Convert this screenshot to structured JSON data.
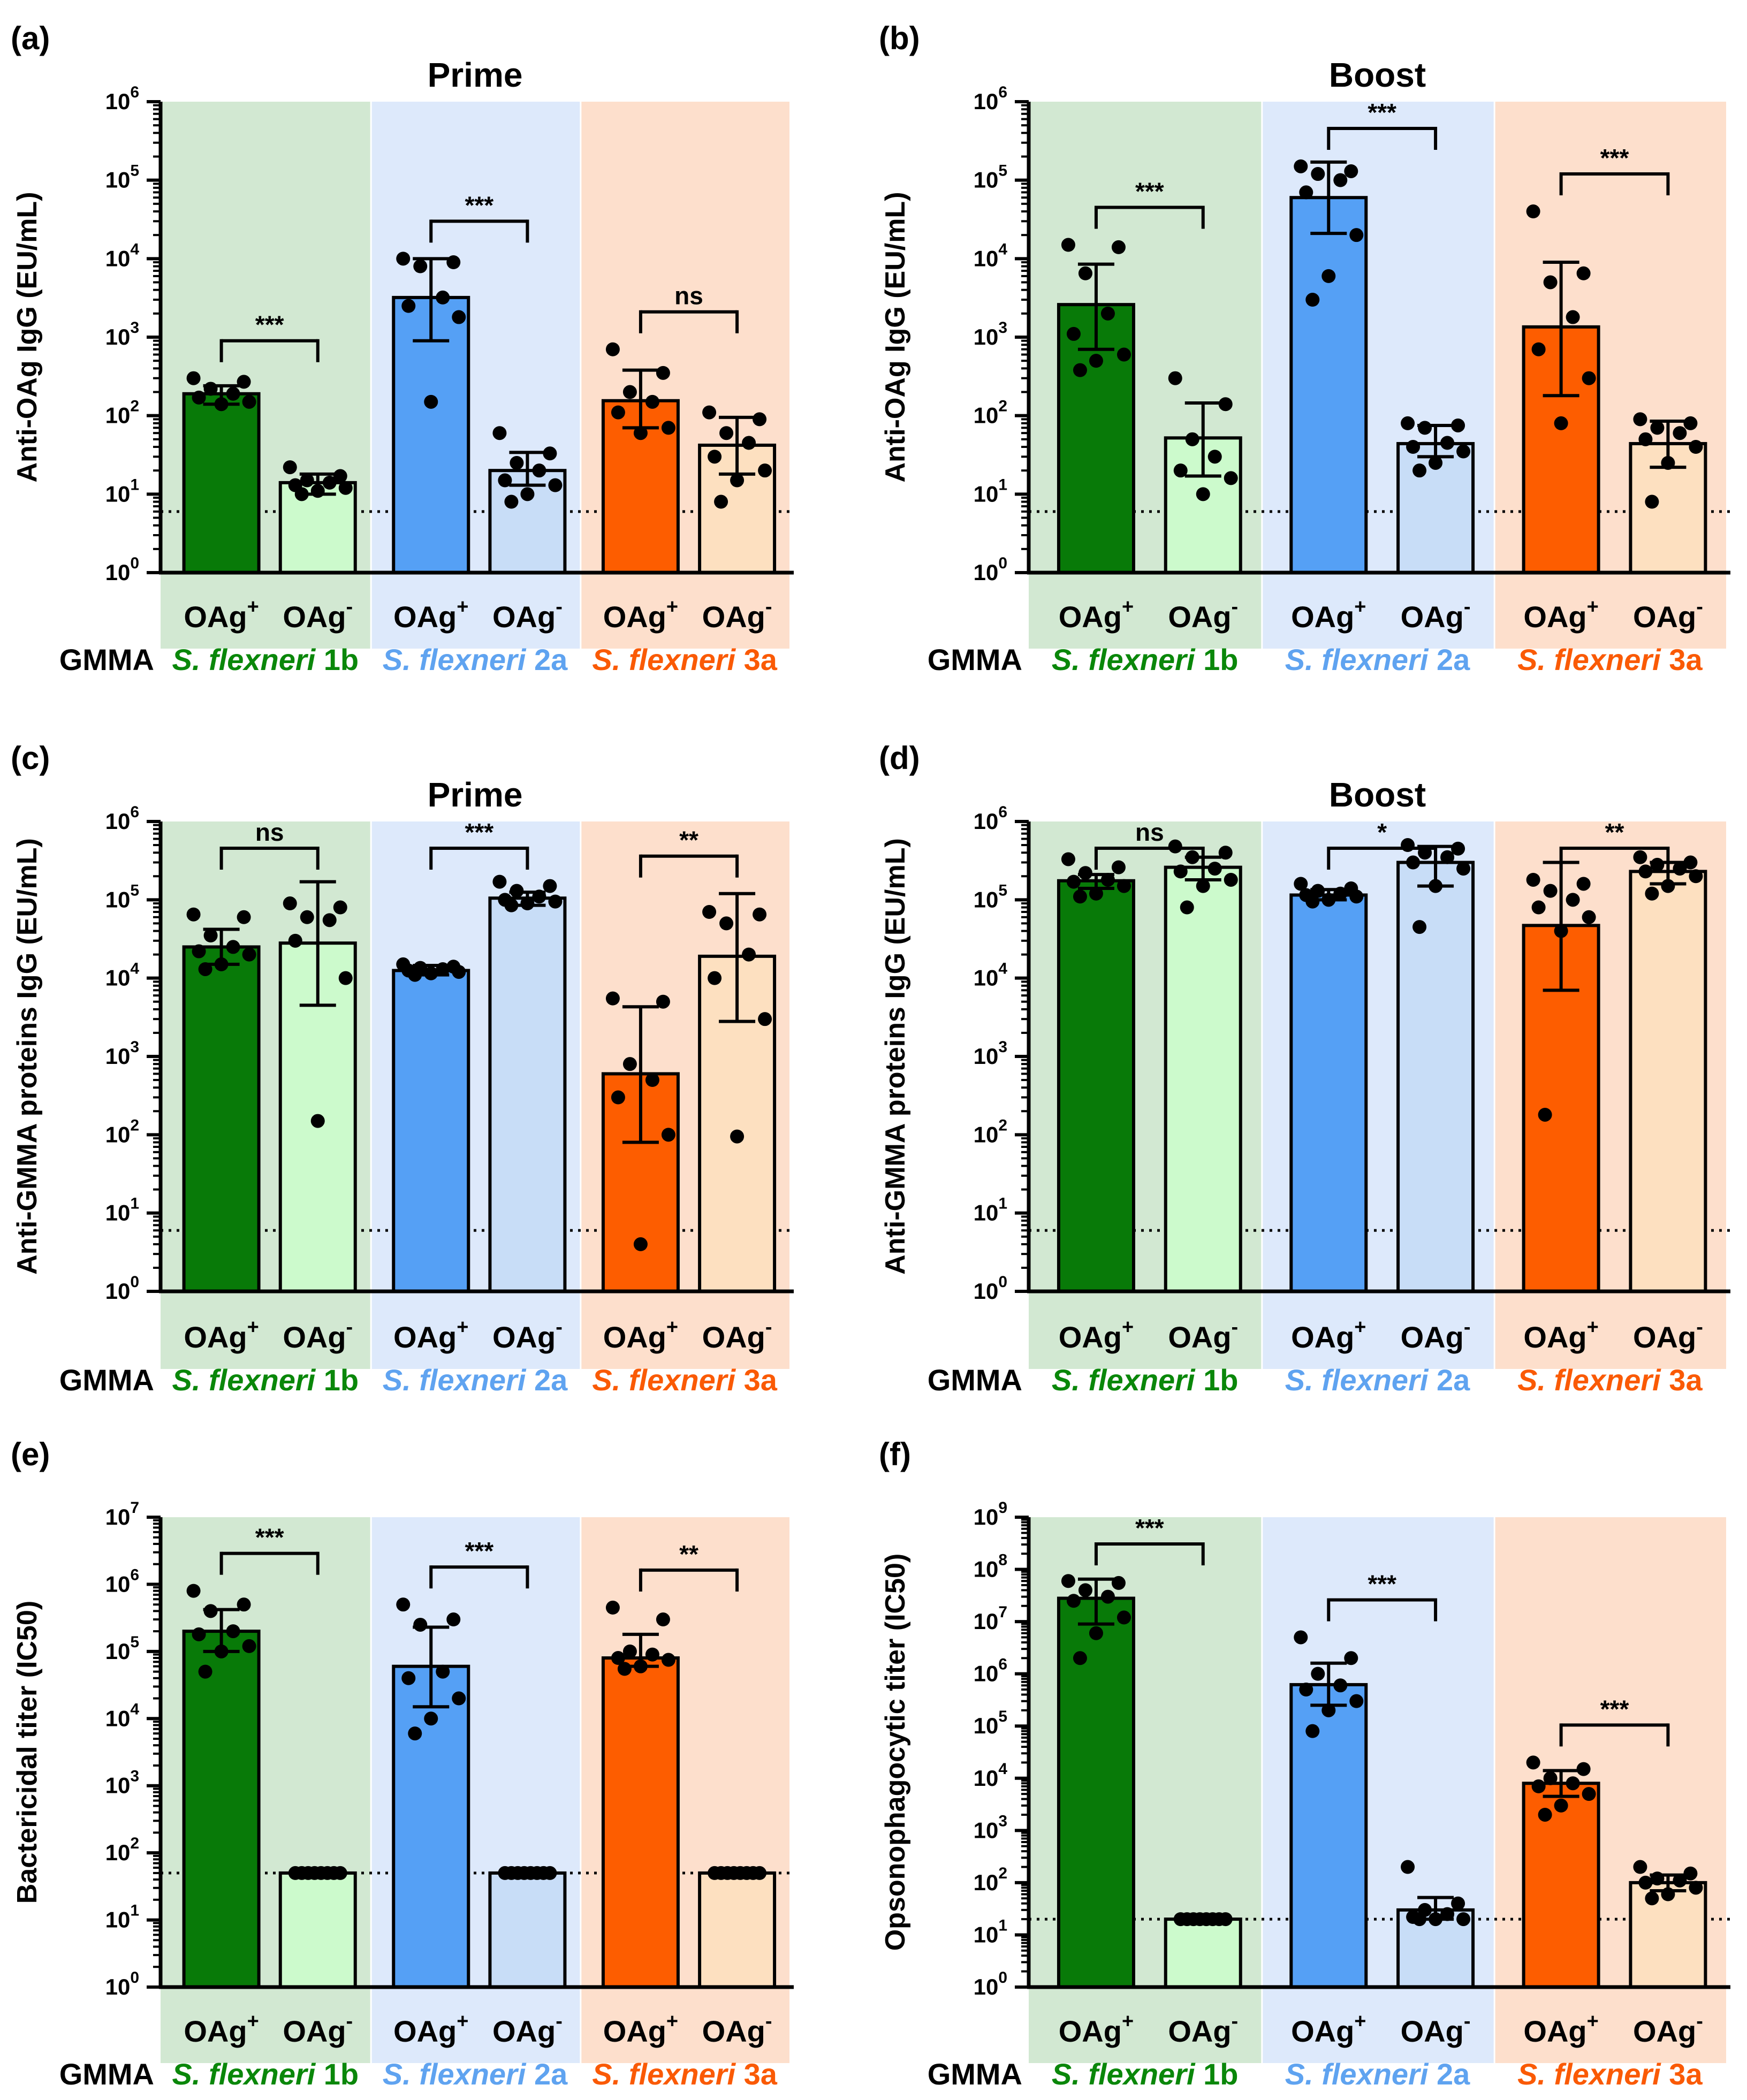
{
  "colors": {
    "bg_green": "#d2e8d2",
    "bg_blue": "#dde9fb",
    "bg_orange": "#fddfcc",
    "bar_green_pos": "#087a08",
    "bar_green_neg": "#ccfacc",
    "bar_blue_pos": "#55a0f5",
    "bar_blue_neg": "#c8ddf7",
    "bar_orange_pos": "#fd5d00",
    "bar_orange_neg": "#fde0c0",
    "label_green": "#0a870a",
    "label_blue": "#5fa3f0",
    "label_orange": "#fa5a05"
  },
  "group_labels": {
    "gmma": "GMMA",
    "g1": {
      "species": "S. flexneri",
      "serotype": "1b"
    },
    "g2": {
      "species": "S. flexneri",
      "serotype": "2a"
    },
    "g3": {
      "species": "S. flexneri",
      "serotype": "3a"
    }
  },
  "bar_labels": {
    "base": "OAg",
    "pos_sup": "+",
    "neg_sup": "-"
  },
  "chart_data": [
    {
      "panel": "(a)",
      "type": "bar",
      "title": "Prime",
      "ylabel": "Anti-OAg IgG (EU/mL)",
      "yscale": "log",
      "ylim": [
        1,
        1000000
      ],
      "ytick_max_exp": 6,
      "lod": 6,
      "categories": [
        "1b OAg+",
        "1b OAg-",
        "2a OAg+",
        "2a OAg-",
        "3a OAg+",
        "3a OAg-"
      ],
      "values": [
        190,
        14,
        3200,
        20,
        155,
        42
      ],
      "err_low": [
        140,
        10,
        900,
        13,
        70,
        18
      ],
      "err_high": [
        240,
        18,
        10000,
        34,
        380,
        95
      ],
      "points": [
        [
          300,
          270,
          220,
          190,
          170,
          150,
          140
        ],
        [
          22,
          17,
          15,
          14,
          13,
          12,
          11,
          10
        ],
        [
          10000,
          9000,
          8000,
          3200,
          2500,
          1800,
          150
        ],
        [
          60,
          33,
          25,
          20,
          15,
          13,
          10,
          8
        ],
        [
          700,
          350,
          200,
          150,
          110,
          70,
          60
        ],
        [
          110,
          90,
          60,
          45,
          30,
          20,
          15,
          8
        ]
      ],
      "significance": [
        {
          "pair": [
            0,
            1
          ],
          "label": "***"
        },
        {
          "pair": [
            2,
            3
          ],
          "label": "***"
        },
        {
          "pair": [
            4,
            5
          ],
          "label": "ns"
        }
      ]
    },
    {
      "panel": "(b)",
      "type": "bar",
      "title": "Boost",
      "ylabel": "Anti-OAg IgG (EU/mL)",
      "yscale": "log",
      "ylim": [
        1,
        1000000
      ],
      "ytick_max_exp": 6,
      "lod": 6,
      "categories": [
        "1b OAg+",
        "1b OAg-",
        "2a OAg+",
        "2a OAg-",
        "3a OAg+",
        "3a OAg-"
      ],
      "values": [
        2600,
        52,
        60000,
        44,
        1350,
        44
      ],
      "err_low": [
        700,
        17,
        21000,
        30,
        180,
        22
      ],
      "err_high": [
        8500,
        145,
        170000,
        75,
        9000,
        85
      ],
      "points": [
        [
          15000,
          14000,
          6500,
          2000,
          1100,
          600,
          500,
          380
        ],
        [
          300,
          140,
          50,
          30,
          20,
          16,
          10
        ],
        [
          150000,
          130000,
          120000,
          100000,
          70000,
          20000,
          6000,
          3000
        ],
        [
          80,
          75,
          70,
          45,
          40,
          35,
          25,
          20
        ],
        [
          40000,
          6500,
          5000,
          1800,
          700,
          300,
          80
        ],
        [
          90,
          80,
          70,
          60,
          50,
          40,
          25,
          8
        ]
      ],
      "significance": [
        {
          "pair": [
            0,
            1
          ],
          "label": "***"
        },
        {
          "pair": [
            2,
            3
          ],
          "label": "***"
        },
        {
          "pair": [
            4,
            5
          ],
          "label": "***"
        }
      ]
    },
    {
      "panel": "(c)",
      "type": "bar",
      "title": "Prime",
      "ylabel": "Anti-GMMA proteins IgG (EU/mL)",
      "yscale": "log",
      "ylim": [
        1,
        1000000
      ],
      "ytick_max_exp": 6,
      "lod": 6,
      "categories": [
        "1b OAg+",
        "1b OAg-",
        "2a OAg+",
        "2a OAg-",
        "3a OAg+",
        "3a OAg-"
      ],
      "values": [
        25000,
        28000,
        12500,
        105000,
        600,
        19000
      ],
      "err_low": [
        15000,
        4500,
        11000,
        85000,
        80,
        2800
      ],
      "err_high": [
        42000,
        170000,
        14500,
        125000,
        4300,
        120000
      ],
      "points": [
        [
          65000,
          60000,
          35000,
          25000,
          22000,
          20000,
          15000,
          13000
        ],
        [
          90000,
          80000,
          60000,
          55000,
          30000,
          10000,
          150
        ],
        [
          15000,
          14000,
          13500,
          13000,
          12500,
          12000,
          11500,
          11000
        ],
        [
          170000,
          150000,
          130000,
          110000,
          100000,
          95000,
          90000,
          85000
        ],
        [
          5500,
          5000,
          800,
          500,
          300,
          100,
          4
        ],
        [
          70000,
          65000,
          50000,
          20000,
          10000,
          3000,
          95
        ]
      ],
      "significance": [
        {
          "pair": [
            0,
            1
          ],
          "label": "ns"
        },
        {
          "pair": [
            2,
            3
          ],
          "label": "***"
        },
        {
          "pair": [
            4,
            5
          ],
          "label": "**"
        }
      ]
    },
    {
      "panel": "(d)",
      "type": "bar",
      "title": "Boost",
      "ylabel": "Anti-GMMA proteins IgG (EU/mL)",
      "yscale": "log",
      "ylim": [
        1,
        1000000
      ],
      "ytick_max_exp": 6,
      "lod": 6,
      "categories": [
        "1b OAg+",
        "1b OAg-",
        "2a OAg+",
        "2a OAg-",
        "3a OAg+",
        "3a OAg-"
      ],
      "values": [
        175000,
        260000,
        115000,
        300000,
        47000,
        230000
      ],
      "err_low": [
        140000,
        180000,
        100000,
        150000,
        7000,
        160000
      ],
      "err_high": [
        210000,
        350000,
        135000,
        480000,
        300000,
        300000
      ],
      "points": [
        [
          330000,
          260000,
          220000,
          180000,
          170000,
          150000,
          120000,
          110000
        ],
        [
          480000,
          400000,
          350000,
          250000,
          230000,
          180000,
          150000,
          80000
        ],
        [
          160000,
          140000,
          130000,
          120000,
          115000,
          110000,
          100000,
          95000
        ],
        [
          500000,
          450000,
          400000,
          350000,
          300000,
          250000,
          150000,
          45000
        ],
        [
          180000,
          160000,
          130000,
          100000,
          80000,
          60000,
          40000,
          180
        ],
        [
          350000,
          300000,
          280000,
          250000,
          230000,
          200000,
          150000,
          120000
        ]
      ],
      "significance": [
        {
          "pair": [
            0,
            1
          ],
          "label": "ns"
        },
        {
          "pair": [
            2,
            3
          ],
          "label": "*"
        },
        {
          "pair": [
            4,
            5
          ],
          "label": "**"
        }
      ]
    },
    {
      "panel": "(e)",
      "type": "bar",
      "title": "",
      "ylabel": "Bactericidal titer (IC50)",
      "yscale": "log",
      "ylim": [
        1,
        10000000
      ],
      "ytick_max_exp": 7,
      "lod": 50,
      "categories": [
        "1b OAg+",
        "1b OAg-",
        "2a OAg+",
        "2a OAg-",
        "3a OAg+",
        "3a OAg-"
      ],
      "values": [
        200000,
        50,
        60000,
        50,
        80000,
        50
      ],
      "err_low": [
        100000,
        50,
        15000,
        50,
        60000,
        50
      ],
      "err_high": [
        420000,
        50,
        230000,
        50,
        180000,
        50
      ],
      "points": [
        [
          800000,
          500000,
          400000,
          200000,
          180000,
          120000,
          100000,
          50000
        ],
        [
          50,
          50,
          50,
          50,
          50,
          50,
          50,
          50
        ],
        [
          500000,
          300000,
          250000,
          50000,
          40000,
          20000,
          10000,
          6000
        ],
        [
          50,
          50,
          50,
          50,
          50,
          50,
          50,
          50
        ],
        [
          450000,
          300000,
          100000,
          90000,
          80000,
          75000,
          60000,
          55000
        ],
        [
          50,
          50,
          50,
          50,
          50,
          50,
          50,
          50
        ]
      ],
      "significance": [
        {
          "pair": [
            0,
            1
          ],
          "label": "***"
        },
        {
          "pair": [
            2,
            3
          ],
          "label": "***"
        },
        {
          "pair": [
            4,
            5
          ],
          "label": "**"
        }
      ]
    },
    {
      "panel": "(f)",
      "type": "bar",
      "title": "",
      "ylabel": "Opsonophagocytic titer (IC50)",
      "yscale": "log",
      "ylim": [
        1,
        1000000000
      ],
      "ytick_max_exp": 9,
      "lod": 20,
      "categories": [
        "1b OAg+",
        "1b OAg-",
        "2a OAg+",
        "2a OAg-",
        "3a OAg+",
        "3a OAg-"
      ],
      "values": [
        28000000,
        20,
        620000,
        30,
        8000,
        100
      ],
      "err_low": [
        9000000,
        20,
        250000,
        20,
        4500,
        70
      ],
      "err_high": [
        65000000,
        20,
        1600000,
        52,
        14000,
        140
      ],
      "points": [
        [
          60000000,
          55000000,
          40000000,
          30000000,
          25000000,
          12000000,
          6000000,
          2000000
        ],
        [
          20,
          20,
          20,
          20,
          20,
          20,
          20,
          20
        ],
        [
          5000000,
          2000000,
          1000000,
          600000,
          500000,
          300000,
          200000,
          80000
        ],
        [
          200,
          40,
          30,
          25,
          22,
          20,
          20,
          20
        ],
        [
          20000,
          15000,
          10000,
          8000,
          7000,
          5000,
          3000,
          2000
        ],
        [
          200,
          150,
          120,
          110,
          100,
          80,
          60,
          50
        ]
      ],
      "significance": [
        {
          "pair": [
            0,
            1
          ],
          "label": "***"
        },
        {
          "pair": [
            2,
            3
          ],
          "label": "***"
        },
        {
          "pair": [
            4,
            5
          ],
          "label": "***"
        }
      ]
    }
  ]
}
